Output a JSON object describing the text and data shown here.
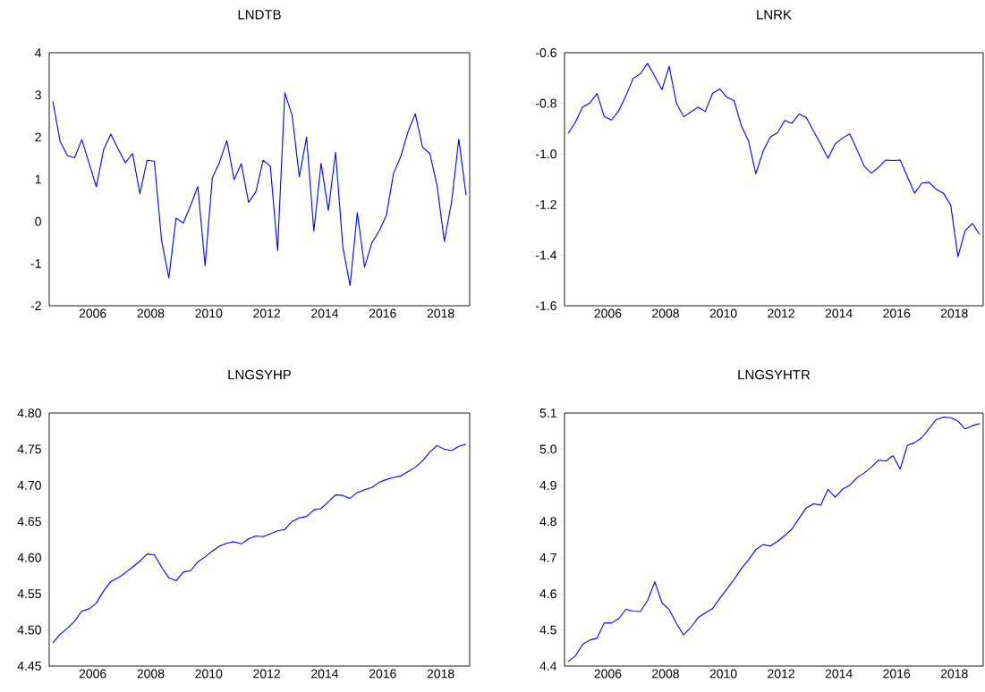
{
  "chart_data": [
    {
      "type": "line",
      "title": "LNDTB",
      "color": "#0000ff",
      "x": [
        2005.125,
        2005.375,
        2005.625,
        2005.875,
        2006.125,
        2006.375,
        2006.625,
        2006.875,
        2007.125,
        2007.375,
        2007.625,
        2007.875,
        2008.125,
        2008.375,
        2008.625,
        2008.875,
        2009.125,
        2009.375,
        2009.625,
        2009.875,
        2010.125,
        2010.375,
        2010.625,
        2010.875,
        2011.125,
        2011.375,
        2011.625,
        2011.875,
        2012.125,
        2012.375,
        2012.625,
        2012.875,
        2013.125,
        2013.375,
        2013.625,
        2013.875,
        2014.125,
        2014.375,
        2014.625,
        2014.875,
        2015.125,
        2015.375,
        2015.625,
        2015.875,
        2016.125,
        2016.375,
        2016.625,
        2016.875,
        2017.125,
        2017.375,
        2017.625,
        2017.875,
        2018.125,
        2018.375,
        2018.625,
        2018.875,
        2019.125,
        2019.375
      ],
      "values": [
        2.85,
        1.9,
        1.56,
        1.51,
        1.94,
        1.38,
        0.82,
        1.7,
        2.07,
        1.72,
        1.39,
        1.61,
        0.66,
        1.45,
        1.43,
        -0.45,
        -1.34,
        0.08,
        -0.04,
        0.38,
        0.83,
        -1.05,
        1.03,
        1.41,
        1.92,
        0.99,
        1.37,
        0.45,
        0.7,
        1.45,
        1.31,
        -0.69,
        3.05,
        2.52,
        1.06,
        2.0,
        -0.23,
        1.38,
        0.26,
        1.64,
        -0.61,
        -1.52,
        0.21,
        -1.08,
        -0.51,
        -0.23,
        0.14,
        1.14,
        1.54,
        2.13,
        2.55,
        1.76,
        1.61,
        0.85,
        -0.47,
        0.46,
        1.95,
        0.62
      ],
      "xlim": [
        2005,
        2019.5
      ],
      "xticks": [
        {
          "value": 2005,
          "label": null
        },
        {
          "value": 2006,
          "label": null
        },
        {
          "value": 2006.5,
          "label": "2006"
        },
        {
          "value": 2007,
          "label": null
        },
        {
          "value": 2008,
          "label": null
        },
        {
          "value": 2008.5,
          "label": "2008"
        },
        {
          "value": 2009,
          "label": null
        },
        {
          "value": 2010,
          "label": null
        },
        {
          "value": 2010.5,
          "label": "2010"
        },
        {
          "value": 2011,
          "label": null
        },
        {
          "value": 2012,
          "label": null
        },
        {
          "value": 2012.5,
          "label": "2012"
        },
        {
          "value": 2013,
          "label": null
        },
        {
          "value": 2014,
          "label": null
        },
        {
          "value": 2014.5,
          "label": "2014"
        },
        {
          "value": 2015,
          "label": null
        },
        {
          "value": 2016,
          "label": null
        },
        {
          "value": 2016.5,
          "label": "2016"
        },
        {
          "value": 2017,
          "label": null
        },
        {
          "value": 2018,
          "label": null
        },
        {
          "value": 2018.5,
          "label": "2018"
        },
        {
          "value": 2019,
          "label": null
        }
      ],
      "ylim": [
        -2,
        4
      ],
      "yticks": [
        -2,
        -1,
        0,
        1,
        2,
        3,
        4
      ]
    },
    {
      "type": "line",
      "title": "LNRK",
      "color": "#0000ff",
      "x": [
        2005.125,
        2005.375,
        2005.625,
        2005.875,
        2006.125,
        2006.375,
        2006.625,
        2006.875,
        2007.125,
        2007.375,
        2007.625,
        2007.875,
        2008.125,
        2008.375,
        2008.625,
        2008.875,
        2009.125,
        2009.375,
        2009.625,
        2009.875,
        2010.125,
        2010.375,
        2010.625,
        2010.875,
        2011.125,
        2011.375,
        2011.625,
        2011.875,
        2012.125,
        2012.375,
        2012.625,
        2012.875,
        2013.125,
        2013.375,
        2013.625,
        2013.875,
        2014.125,
        2014.375,
        2014.625,
        2014.875,
        2015.125,
        2015.375,
        2015.625,
        2015.875,
        2016.125,
        2016.375,
        2016.625,
        2016.875,
        2017.125,
        2017.375,
        2017.625,
        2017.875,
        2018.125,
        2018.375,
        2018.625,
        2018.875,
        2019.125,
        2019.375
      ],
      "values": [
        -0.919,
        -0.875,
        -0.815,
        -0.799,
        -0.761,
        -0.852,
        -0.866,
        -0.83,
        -0.77,
        -0.702,
        -0.683,
        -0.642,
        -0.693,
        -0.746,
        -0.653,
        -0.8,
        -0.853,
        -0.834,
        -0.815,
        -0.832,
        -0.761,
        -0.743,
        -0.776,
        -0.79,
        -0.889,
        -0.949,
        -1.078,
        -0.99,
        -0.933,
        -0.916,
        -0.868,
        -0.879,
        -0.842,
        -0.856,
        -0.91,
        -0.961,
        -1.017,
        -0.96,
        -0.937,
        -0.921,
        -0.982,
        -1.048,
        -1.076,
        -1.053,
        -1.024,
        -1.026,
        -1.024,
        -1.09,
        -1.155,
        -1.115,
        -1.112,
        -1.14,
        -1.156,
        -1.202,
        -1.406,
        -1.303,
        -1.275,
        -1.318
      ],
      "xlim": [
        2005,
        2019.5
      ],
      "xticks": [
        {
          "value": 2005,
          "label": null
        },
        {
          "value": 2006,
          "label": null
        },
        {
          "value": 2006.5,
          "label": "2006"
        },
        {
          "value": 2007,
          "label": null
        },
        {
          "value": 2008,
          "label": null
        },
        {
          "value": 2008.5,
          "label": "2008"
        },
        {
          "value": 2009,
          "label": null
        },
        {
          "value": 2010,
          "label": null
        },
        {
          "value": 2010.5,
          "label": "2010"
        },
        {
          "value": 2011,
          "label": null
        },
        {
          "value": 2012,
          "label": null
        },
        {
          "value": 2012.5,
          "label": "2012"
        },
        {
          "value": 2013,
          "label": null
        },
        {
          "value": 2014,
          "label": null
        },
        {
          "value": 2014.5,
          "label": "2014"
        },
        {
          "value": 2015,
          "label": null
        },
        {
          "value": 2016,
          "label": null
        },
        {
          "value": 2016.5,
          "label": "2016"
        },
        {
          "value": 2017,
          "label": null
        },
        {
          "value": 2018,
          "label": null
        },
        {
          "value": 2018.5,
          "label": "2018"
        },
        {
          "value": 2019,
          "label": null
        }
      ],
      "ylim": [
        -1.6,
        -0.6
      ],
      "yticks": [
        {
          "value": -1.6,
          "label": "-1.6"
        },
        {
          "value": -1.4,
          "label": "-1.4"
        },
        {
          "value": -1.2,
          "label": "-1.2"
        },
        {
          "value": -1.0,
          "label": "-1.0"
        },
        {
          "value": -0.8,
          "label": "-0.8"
        },
        {
          "value": -0.6,
          "label": "-0.6"
        }
      ]
    },
    {
      "type": "line",
      "title": "LNGSYHP",
      "color": "#0000ff",
      "x": [
        2005.125,
        2005.375,
        2005.625,
        2005.875,
        2006.125,
        2006.375,
        2006.625,
        2006.875,
        2007.125,
        2007.375,
        2007.625,
        2007.875,
        2008.125,
        2008.375,
        2008.625,
        2008.875,
        2009.125,
        2009.375,
        2009.625,
        2009.875,
        2010.125,
        2010.375,
        2010.625,
        2010.875,
        2011.125,
        2011.375,
        2011.625,
        2011.875,
        2012.125,
        2012.375,
        2012.625,
        2012.875,
        2013.125,
        2013.375,
        2013.625,
        2013.875,
        2014.125,
        2014.375,
        2014.625,
        2014.875,
        2015.125,
        2015.375,
        2015.625,
        2015.875,
        2016.125,
        2016.375,
        2016.625,
        2016.875,
        2017.125,
        2017.375,
        2017.625,
        2017.875,
        2018.125,
        2018.375,
        2018.625,
        2018.875,
        2019.125,
        2019.375
      ],
      "values": [
        4.482,
        4.494,
        4.502,
        4.512,
        4.526,
        4.529,
        4.537,
        4.554,
        4.567,
        4.572,
        4.579,
        4.587,
        4.595,
        4.605,
        4.604,
        4.587,
        4.572,
        4.568,
        4.58,
        4.582,
        4.594,
        4.601,
        4.609,
        4.616,
        4.62,
        4.622,
        4.619,
        4.626,
        4.63,
        4.629,
        4.633,
        4.637,
        4.639,
        4.65,
        4.655,
        4.657,
        4.666,
        4.668,
        4.677,
        4.687,
        4.686,
        4.682,
        4.69,
        4.694,
        4.697,
        4.704,
        4.708,
        4.711,
        4.713,
        4.719,
        4.725,
        4.734,
        4.746,
        4.755,
        4.75,
        4.748,
        4.754,
        4.757
      ],
      "xlim": [
        2005,
        2019.5
      ],
      "xticks": [
        {
          "value": 2005,
          "label": null
        },
        {
          "value": 2006,
          "label": null
        },
        {
          "value": 2006.5,
          "label": "2006"
        },
        {
          "value": 2007,
          "label": null
        },
        {
          "value": 2008,
          "label": null
        },
        {
          "value": 2008.5,
          "label": "2008"
        },
        {
          "value": 2009,
          "label": null
        },
        {
          "value": 2010,
          "label": null
        },
        {
          "value": 2010.5,
          "label": "2010"
        },
        {
          "value": 2011,
          "label": null
        },
        {
          "value": 2012,
          "label": null
        },
        {
          "value": 2012.5,
          "label": "2012"
        },
        {
          "value": 2013,
          "label": null
        },
        {
          "value": 2014,
          "label": null
        },
        {
          "value": 2014.5,
          "label": "2014"
        },
        {
          "value": 2015,
          "label": null
        },
        {
          "value": 2016,
          "label": null
        },
        {
          "value": 2016.5,
          "label": "2016"
        },
        {
          "value": 2017,
          "label": null
        },
        {
          "value": 2018,
          "label": null
        },
        {
          "value": 2018.5,
          "label": "2018"
        },
        {
          "value": 2019,
          "label": null
        }
      ],
      "ylim": [
        4.45,
        4.8
      ],
      "yticks": [
        {
          "value": 4.45,
          "label": "4.45"
        },
        {
          "value": 4.5,
          "label": "4.50"
        },
        {
          "value": 4.55,
          "label": "4.55"
        },
        {
          "value": 4.6,
          "label": "4.60"
        },
        {
          "value": 4.65,
          "label": "4.65"
        },
        {
          "value": 4.7,
          "label": "4.70"
        },
        {
          "value": 4.75,
          "label": "4.75"
        },
        {
          "value": 4.8,
          "label": "4.80"
        }
      ]
    },
    {
      "type": "line",
      "title": "LNGSYHTR",
      "color": "#0000ff",
      "x": [
        2005.125,
        2005.375,
        2005.625,
        2005.875,
        2006.125,
        2006.375,
        2006.625,
        2006.875,
        2007.125,
        2007.375,
        2007.625,
        2007.875,
        2008.125,
        2008.375,
        2008.625,
        2008.875,
        2009.125,
        2009.375,
        2009.625,
        2009.875,
        2010.125,
        2010.375,
        2010.625,
        2010.875,
        2011.125,
        2011.375,
        2011.625,
        2011.875,
        2012.125,
        2012.375,
        2012.625,
        2012.875,
        2013.125,
        2013.375,
        2013.625,
        2013.875,
        2014.125,
        2014.375,
        2014.625,
        2014.875,
        2015.125,
        2015.375,
        2015.625,
        2015.875,
        2016.125,
        2016.375,
        2016.625,
        2016.875,
        2017.125,
        2017.375,
        2017.625,
        2017.875,
        2018.125,
        2018.375,
        2018.625,
        2018.875,
        2019.125,
        2019.375
      ],
      "values": [
        4.412,
        4.428,
        4.46,
        4.472,
        4.477,
        4.519,
        4.519,
        4.531,
        4.557,
        4.552,
        4.551,
        4.581,
        4.633,
        4.575,
        4.556,
        4.518,
        4.486,
        4.507,
        4.534,
        4.547,
        4.559,
        4.587,
        4.613,
        4.64,
        4.67,
        4.694,
        4.722,
        4.736,
        4.732,
        4.745,
        4.761,
        4.779,
        4.809,
        4.838,
        4.849,
        4.845,
        4.889,
        4.867,
        4.889,
        4.9,
        4.921,
        4.934,
        4.95,
        4.97,
        4.967,
        4.982,
        4.945,
        5.011,
        5.018,
        5.032,
        5.057,
        5.082,
        5.089,
        5.087,
        5.078,
        5.056,
        5.065,
        5.071
      ],
      "xlim": [
        2005,
        2019.5
      ],
      "xticks": [
        {
          "value": 2005,
          "label": null
        },
        {
          "value": 2006,
          "label": null
        },
        {
          "value": 2006.5,
          "label": "2006"
        },
        {
          "value": 2007,
          "label": null
        },
        {
          "value": 2008,
          "label": null
        },
        {
          "value": 2008.5,
          "label": "2008"
        },
        {
          "value": 2009,
          "label": null
        },
        {
          "value": 2010,
          "label": null
        },
        {
          "value": 2010.5,
          "label": "2010"
        },
        {
          "value": 2011,
          "label": null
        },
        {
          "value": 2012,
          "label": null
        },
        {
          "value": 2012.5,
          "label": "2012"
        },
        {
          "value": 2013,
          "label": null
        },
        {
          "value": 2014,
          "label": null
        },
        {
          "value": 2014.5,
          "label": "2014"
        },
        {
          "value": 2015,
          "label": null
        },
        {
          "value": 2016,
          "label": null
        },
        {
          "value": 2016.5,
          "label": "2016"
        },
        {
          "value": 2017,
          "label": null
        },
        {
          "value": 2018,
          "label": null
        },
        {
          "value": 2018.5,
          "label": "2018"
        },
        {
          "value": 2019,
          "label": null
        }
      ],
      "ylim": [
        4.4,
        5.1
      ],
      "yticks": [
        {
          "value": 4.4,
          "label": "4.4"
        },
        {
          "value": 4.5,
          "label": "4.5"
        },
        {
          "value": 4.6,
          "label": "4.6"
        },
        {
          "value": 4.7,
          "label": "4.7"
        },
        {
          "value": 4.8,
          "label": "4.8"
        },
        {
          "value": 4.9,
          "label": "4.9"
        },
        {
          "value": 5.0,
          "label": "5.0"
        },
        {
          "value": 5.1,
          "label": "5.1"
        }
      ]
    }
  ]
}
